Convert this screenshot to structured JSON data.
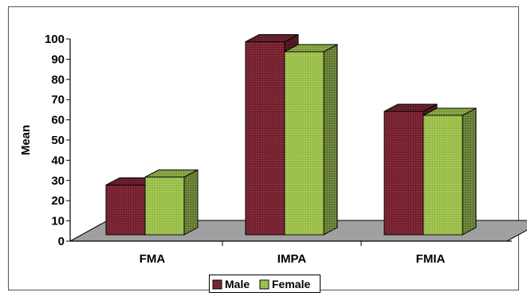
{
  "chart_data": {
    "type": "bar",
    "categories": [
      "FMA",
      "IMPA",
      "FMIA"
    ],
    "series": [
      {
        "name": "Male",
        "values": [
          25,
          97,
          62
        ],
        "color": "#8e2236"
      },
      {
        "name": "Female",
        "values": [
          29,
          92,
          60
        ],
        "color": "#a6d047"
      }
    ],
    "ylabel": "Mean",
    "ylim": [
      0,
      100
    ],
    "yticks": [
      "0",
      "10",
      "20",
      "30",
      "40",
      "50",
      "60",
      "70",
      "80",
      "90",
      "100"
    ],
    "legend_position": "bottom",
    "floor_color": "#a0a0a0",
    "grid": false
  }
}
